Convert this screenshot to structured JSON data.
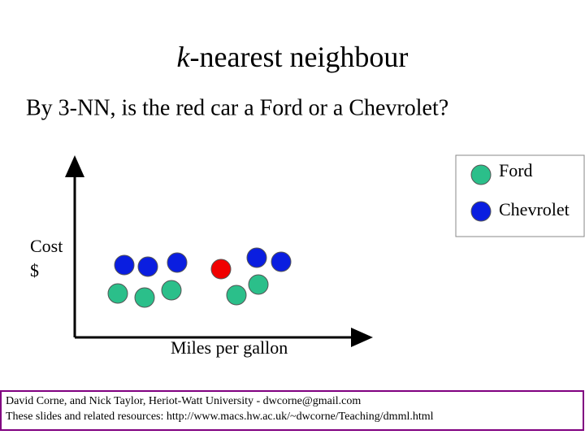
{
  "title": [
    "k",
    "-nearest neighbour"
  ],
  "subtitle": "By 3-NN, is the red car a Ford or a Chevrolet?",
  "legend": [
    "Ford",
    "Chevrolet"
  ],
  "axes": {
    "y_label": [
      "Cost",
      "$"
    ],
    "x_label": "Miles per gallon"
  },
  "footer": [
    "David Corne, and Nick Taylor,  Heriot-Watt University  -  dwcorne@gmail.com",
    "These slides and related resources:   http://www.macs.hw.ac.uk/~dwcorne/Teaching/dmml.html"
  ]
}
